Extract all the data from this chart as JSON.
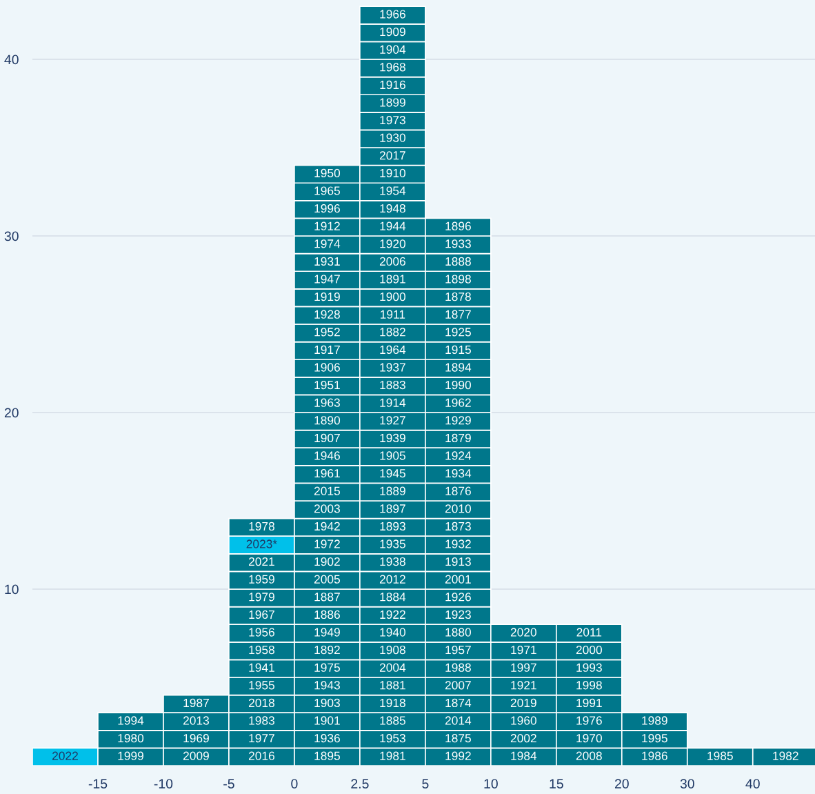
{
  "chart_data": {
    "type": "bar",
    "stacked": true,
    "color": "#00778b",
    "grid": "y",
    "categories": [
      null,
      null,
      null,
      null,
      null,
      null,
      null,
      null,
      null,
      null,
      null,
      null
    ],
    "ylim": [
      0,
      43.36
    ],
    "yticks": [
      10,
      20,
      30,
      40
    ],
    "annotations": [
      "-15",
      "-10",
      "-5",
      "0",
      "2.5",
      "5",
      "10",
      "15",
      "20",
      "30",
      "40"
    ],
    "series": [
      {
        "name": "2022",
        "color": "#00c0ea",
        "values": [
          1,
          null,
          null,
          null,
          null,
          null,
          null,
          null,
          null,
          null,
          null,
          null
        ]
      },
      {
        "name": "1999",
        "values": [
          null,
          1,
          null,
          null,
          null,
          null,
          null,
          null,
          null,
          null,
          null,
          null
        ]
      },
      {
        "name": "1980",
        "values": [
          null,
          1,
          null,
          null,
          null,
          null,
          null,
          null,
          null,
          null,
          null,
          null
        ]
      },
      {
        "name": "1994",
        "values": [
          null,
          1,
          null,
          null,
          null,
          null,
          null,
          null,
          null,
          null,
          null,
          null
        ]
      },
      {
        "name": "2009",
        "values": [
          null,
          null,
          1,
          null,
          null,
          null,
          null,
          null,
          null,
          null,
          null,
          null
        ]
      },
      {
        "name": "1969",
        "values": [
          null,
          null,
          1,
          null,
          null,
          null,
          null,
          null,
          null,
          null,
          null,
          null
        ]
      },
      {
        "name": "2013",
        "values": [
          null,
          null,
          1,
          null,
          null,
          null,
          null,
          null,
          null,
          null,
          null,
          null
        ]
      },
      {
        "name": "1987",
        "values": [
          null,
          null,
          1,
          null,
          null,
          null,
          null,
          null,
          null,
          null,
          null,
          null
        ]
      },
      {
        "name": "2016",
        "values": [
          null,
          null,
          null,
          1,
          null,
          null,
          null,
          null,
          null,
          null,
          null,
          null
        ]
      },
      {
        "name": "1977",
        "values": [
          null,
          null,
          null,
          1,
          null,
          null,
          null,
          null,
          null,
          null,
          null,
          null
        ]
      },
      {
        "name": "1983",
        "values": [
          null,
          null,
          null,
          1,
          null,
          null,
          null,
          null,
          null,
          null,
          null,
          null
        ]
      },
      {
        "name": "2018",
        "values": [
          null,
          null,
          null,
          1,
          null,
          null,
          null,
          null,
          null,
          null,
          null,
          null
        ]
      },
      {
        "name": "1955",
        "values": [
          null,
          null,
          null,
          1,
          null,
          null,
          null,
          null,
          null,
          null,
          null,
          null
        ]
      },
      {
        "name": "1941",
        "values": [
          null,
          null,
          null,
          1,
          null,
          null,
          null,
          null,
          null,
          null,
          null,
          null
        ]
      },
      {
        "name": "1958",
        "values": [
          null,
          null,
          null,
          1,
          null,
          null,
          null,
          null,
          null,
          null,
          null,
          null
        ]
      },
      {
        "name": "1956",
        "values": [
          null,
          null,
          null,
          1,
          null,
          null,
          null,
          null,
          null,
          null,
          null,
          null
        ]
      },
      {
        "name": "1967",
        "values": [
          null,
          null,
          null,
          1,
          null,
          null,
          null,
          null,
          null,
          null,
          null,
          null
        ]
      },
      {
        "name": "1979",
        "values": [
          null,
          null,
          null,
          1,
          null,
          null,
          null,
          null,
          null,
          null,
          null,
          null
        ]
      },
      {
        "name": "1959",
        "values": [
          null,
          null,
          null,
          1,
          null,
          null,
          null,
          null,
          null,
          null,
          null,
          null
        ]
      },
      {
        "name": "2021",
        "values": [
          null,
          null,
          null,
          1,
          null,
          null,
          null,
          null,
          null,
          null,
          null,
          null
        ]
      },
      {
        "name": "2023*",
        "color": "#00c0ea",
        "values": [
          null,
          null,
          null,
          1,
          null,
          null,
          null,
          null,
          null,
          null,
          null,
          null
        ]
      },
      {
        "name": "1978",
        "values": [
          null,
          null,
          null,
          1,
          null,
          null,
          null,
          null,
          null,
          null,
          null,
          null
        ]
      },
      {
        "name": "1895",
        "values": [
          null,
          null,
          null,
          null,
          1,
          null,
          null,
          null,
          null,
          null,
          null,
          null
        ]
      },
      {
        "name": "1936",
        "values": [
          null,
          null,
          null,
          null,
          1,
          null,
          null,
          null,
          null,
          null,
          null,
          null
        ]
      },
      {
        "name": "1901",
        "values": [
          null,
          null,
          null,
          null,
          1,
          null,
          null,
          null,
          null,
          null,
          null,
          null
        ]
      },
      {
        "name": "1903",
        "values": [
          null,
          null,
          null,
          null,
          1,
          null,
          null,
          null,
          null,
          null,
          null,
          null
        ]
      },
      {
        "name": "1943",
        "values": [
          null,
          null,
          null,
          null,
          1,
          null,
          null,
          null,
          null,
          null,
          null,
          null
        ]
      },
      {
        "name": "1975",
        "values": [
          null,
          null,
          null,
          null,
          1,
          null,
          null,
          null,
          null,
          null,
          null,
          null
        ]
      },
      {
        "name": "1892",
        "values": [
          null,
          null,
          null,
          null,
          1,
          null,
          null,
          null,
          null,
          null,
          null,
          null
        ]
      },
      {
        "name": "1949",
        "values": [
          null,
          null,
          null,
          null,
          1,
          null,
          null,
          null,
          null,
          null,
          null,
          null
        ]
      },
      {
        "name": "1886",
        "values": [
          null,
          null,
          null,
          null,
          1,
          null,
          null,
          null,
          null,
          null,
          null,
          null
        ]
      },
      {
        "name": "1887",
        "values": [
          null,
          null,
          null,
          null,
          1,
          null,
          null,
          null,
          null,
          null,
          null,
          null
        ]
      },
      {
        "name": "2005",
        "values": [
          null,
          null,
          null,
          null,
          1,
          null,
          null,
          null,
          null,
          null,
          null,
          null
        ]
      },
      {
        "name": "1902",
        "values": [
          null,
          null,
          null,
          null,
          1,
          null,
          null,
          null,
          null,
          null,
          null,
          null
        ]
      },
      {
        "name": "1972",
        "values": [
          null,
          null,
          null,
          null,
          1,
          null,
          null,
          null,
          null,
          null,
          null,
          null
        ]
      },
      {
        "name": "1942",
        "values": [
          null,
          null,
          null,
          null,
          1,
          null,
          null,
          null,
          null,
          null,
          null,
          null
        ]
      },
      {
        "name": "2003",
        "values": [
          null,
          null,
          null,
          null,
          1,
          null,
          null,
          null,
          null,
          null,
          null,
          null
        ]
      },
      {
        "name": "2015",
        "values": [
          null,
          null,
          null,
          null,
          1,
          null,
          null,
          null,
          null,
          null,
          null,
          null
        ]
      },
      {
        "name": "1961",
        "values": [
          null,
          null,
          null,
          null,
          1,
          null,
          null,
          null,
          null,
          null,
          null,
          null
        ]
      },
      {
        "name": "1946",
        "values": [
          null,
          null,
          null,
          null,
          1,
          null,
          null,
          null,
          null,
          null,
          null,
          null
        ]
      },
      {
        "name": "1907",
        "values": [
          null,
          null,
          null,
          null,
          1,
          null,
          null,
          null,
          null,
          null,
          null,
          null
        ]
      },
      {
        "name": "1890",
        "values": [
          null,
          null,
          null,
          null,
          1,
          null,
          null,
          null,
          null,
          null,
          null,
          null
        ]
      },
      {
        "name": "1963",
        "values": [
          null,
          null,
          null,
          null,
          1,
          null,
          null,
          null,
          null,
          null,
          null,
          null
        ]
      },
      {
        "name": "1951",
        "values": [
          null,
          null,
          null,
          null,
          1,
          null,
          null,
          null,
          null,
          null,
          null,
          null
        ]
      },
      {
        "name": "1906",
        "values": [
          null,
          null,
          null,
          null,
          1,
          null,
          null,
          null,
          null,
          null,
          null,
          null
        ]
      },
      {
        "name": "1917",
        "values": [
          null,
          null,
          null,
          null,
          1,
          null,
          null,
          null,
          null,
          null,
          null,
          null
        ]
      },
      {
        "name": "1952",
        "values": [
          null,
          null,
          null,
          null,
          1,
          null,
          null,
          null,
          null,
          null,
          null,
          null
        ]
      },
      {
        "name": "1928",
        "values": [
          null,
          null,
          null,
          null,
          1,
          null,
          null,
          null,
          null,
          null,
          null,
          null
        ]
      },
      {
        "name": "1919",
        "values": [
          null,
          null,
          null,
          null,
          1,
          null,
          null,
          null,
          null,
          null,
          null,
          null
        ]
      },
      {
        "name": "1947",
        "values": [
          null,
          null,
          null,
          null,
          1,
          null,
          null,
          null,
          null,
          null,
          null,
          null
        ]
      },
      {
        "name": "1931",
        "values": [
          null,
          null,
          null,
          null,
          1,
          null,
          null,
          null,
          null,
          null,
          null,
          null
        ]
      },
      {
        "name": "1974",
        "values": [
          null,
          null,
          null,
          null,
          1,
          null,
          null,
          null,
          null,
          null,
          null,
          null
        ]
      },
      {
        "name": "1912",
        "values": [
          null,
          null,
          null,
          null,
          1,
          null,
          null,
          null,
          null,
          null,
          null,
          null
        ]
      },
      {
        "name": "1996",
        "values": [
          null,
          null,
          null,
          null,
          1,
          null,
          null,
          null,
          null,
          null,
          null,
          null
        ]
      },
      {
        "name": "1965",
        "values": [
          null,
          null,
          null,
          null,
          1,
          null,
          null,
          null,
          null,
          null,
          null,
          null
        ]
      },
      {
        "name": "1950",
        "values": [
          null,
          null,
          null,
          null,
          1,
          null,
          null,
          null,
          null,
          null,
          null,
          null
        ]
      },
      {
        "name": "1981",
        "values": [
          null,
          null,
          null,
          null,
          null,
          1,
          null,
          null,
          null,
          null,
          null,
          null
        ]
      },
      {
        "name": "1953",
        "values": [
          null,
          null,
          null,
          null,
          null,
          1,
          null,
          null,
          null,
          null,
          null,
          null
        ]
      },
      {
        "name": "1885",
        "values": [
          null,
          null,
          null,
          null,
          null,
          1,
          null,
          null,
          null,
          null,
          null,
          null
        ]
      },
      {
        "name": "1918",
        "values": [
          null,
          null,
          null,
          null,
          null,
          1,
          null,
          null,
          null,
          null,
          null,
          null
        ]
      },
      {
        "name": "1881",
        "values": [
          null,
          null,
          null,
          null,
          null,
          1,
          null,
          null,
          null,
          null,
          null,
          null
        ]
      },
      {
        "name": "2004",
        "values": [
          null,
          null,
          null,
          null,
          null,
          1,
          null,
          null,
          null,
          null,
          null,
          null
        ]
      },
      {
        "name": "1908",
        "values": [
          null,
          null,
          null,
          null,
          null,
          1,
          null,
          null,
          null,
          null,
          null,
          null
        ]
      },
      {
        "name": "1940",
        "values": [
          null,
          null,
          null,
          null,
          null,
          1,
          null,
          null,
          null,
          null,
          null,
          null
        ]
      },
      {
        "name": "1922",
        "values": [
          null,
          null,
          null,
          null,
          null,
          1,
          null,
          null,
          null,
          null,
          null,
          null
        ]
      },
      {
        "name": "1884",
        "values": [
          null,
          null,
          null,
          null,
          null,
          1,
          null,
          null,
          null,
          null,
          null,
          null
        ]
      },
      {
        "name": "2012",
        "values": [
          null,
          null,
          null,
          null,
          null,
          1,
          null,
          null,
          null,
          null,
          null,
          null
        ]
      },
      {
        "name": "1938",
        "values": [
          null,
          null,
          null,
          null,
          null,
          1,
          null,
          null,
          null,
          null,
          null,
          null
        ]
      },
      {
        "name": "1935",
        "values": [
          null,
          null,
          null,
          null,
          null,
          1,
          null,
          null,
          null,
          null,
          null,
          null
        ]
      },
      {
        "name": "1893",
        "values": [
          null,
          null,
          null,
          null,
          null,
          1,
          null,
          null,
          null,
          null,
          null,
          null
        ]
      },
      {
        "name": "1897",
        "values": [
          null,
          null,
          null,
          null,
          null,
          1,
          null,
          null,
          null,
          null,
          null,
          null
        ]
      },
      {
        "name": "1889",
        "values": [
          null,
          null,
          null,
          null,
          null,
          1,
          null,
          null,
          null,
          null,
          null,
          null
        ]
      },
      {
        "name": "1945",
        "values": [
          null,
          null,
          null,
          null,
          null,
          1,
          null,
          null,
          null,
          null,
          null,
          null
        ]
      },
      {
        "name": "1905",
        "values": [
          null,
          null,
          null,
          null,
          null,
          1,
          null,
          null,
          null,
          null,
          null,
          null
        ]
      },
      {
        "name": "1939",
        "values": [
          null,
          null,
          null,
          null,
          null,
          1,
          null,
          null,
          null,
          null,
          null,
          null
        ]
      },
      {
        "name": "1927",
        "values": [
          null,
          null,
          null,
          null,
          null,
          1,
          null,
          null,
          null,
          null,
          null,
          null
        ]
      },
      {
        "name": "1914",
        "values": [
          null,
          null,
          null,
          null,
          null,
          1,
          null,
          null,
          null,
          null,
          null,
          null
        ]
      },
      {
        "name": "1883",
        "values": [
          null,
          null,
          null,
          null,
          null,
          1,
          null,
          null,
          null,
          null,
          null,
          null
        ]
      },
      {
        "name": "1937",
        "values": [
          null,
          null,
          null,
          null,
          null,
          1,
          null,
          null,
          null,
          null,
          null,
          null
        ]
      },
      {
        "name": "1964",
        "values": [
          null,
          null,
          null,
          null,
          null,
          1,
          null,
          null,
          null,
          null,
          null,
          null
        ]
      },
      {
        "name": "1882",
        "values": [
          null,
          null,
          null,
          null,
          null,
          1,
          null,
          null,
          null,
          null,
          null,
          null
        ]
      },
      {
        "name": "1911",
        "values": [
          null,
          null,
          null,
          null,
          null,
          1,
          null,
          null,
          null,
          null,
          null,
          null
        ]
      },
      {
        "name": "1900",
        "values": [
          null,
          null,
          null,
          null,
          null,
          1,
          null,
          null,
          null,
          null,
          null,
          null
        ]
      },
      {
        "name": "1891",
        "values": [
          null,
          null,
          null,
          null,
          null,
          1,
          null,
          null,
          null,
          null,
          null,
          null
        ]
      },
      {
        "name": "2006",
        "values": [
          null,
          null,
          null,
          null,
          null,
          1,
          null,
          null,
          null,
          null,
          null,
          null
        ]
      },
      {
        "name": "1920",
        "values": [
          null,
          null,
          null,
          null,
          null,
          1,
          null,
          null,
          null,
          null,
          null,
          null
        ]
      },
      {
        "name": "1944",
        "values": [
          null,
          null,
          null,
          null,
          null,
          1,
          null,
          null,
          null,
          null,
          null,
          null
        ]
      },
      {
        "name": "1948",
        "values": [
          null,
          null,
          null,
          null,
          null,
          1,
          null,
          null,
          null,
          null,
          null,
          null
        ]
      },
      {
        "name": "1954",
        "values": [
          null,
          null,
          null,
          null,
          null,
          1,
          null,
          null,
          null,
          null,
          null,
          null
        ]
      },
      {
        "name": "1910",
        "values": [
          null,
          null,
          null,
          null,
          null,
          1,
          null,
          null,
          null,
          null,
          null,
          null
        ]
      },
      {
        "name": "2017",
        "values": [
          null,
          null,
          null,
          null,
          null,
          1,
          null,
          null,
          null,
          null,
          null,
          null
        ]
      },
      {
        "name": "1930",
        "values": [
          null,
          null,
          null,
          null,
          null,
          1,
          null,
          null,
          null,
          null,
          null,
          null
        ]
      },
      {
        "name": "1973",
        "values": [
          null,
          null,
          null,
          null,
          null,
          1,
          null,
          null,
          null,
          null,
          null,
          null
        ]
      },
      {
        "name": "1899",
        "values": [
          null,
          null,
          null,
          null,
          null,
          1,
          null,
          null,
          null,
          null,
          null,
          null
        ]
      },
      {
        "name": "1916",
        "values": [
          null,
          null,
          null,
          null,
          null,
          1,
          null,
          null,
          null,
          null,
          null,
          null
        ]
      },
      {
        "name": "1968",
        "values": [
          null,
          null,
          null,
          null,
          null,
          1,
          null,
          null,
          null,
          null,
          null,
          null
        ]
      },
      {
        "name": "1904",
        "values": [
          null,
          null,
          null,
          null,
          null,
          1,
          null,
          null,
          null,
          null,
          null,
          null
        ]
      },
      {
        "name": "1909",
        "values": [
          null,
          null,
          null,
          null,
          null,
          1,
          null,
          null,
          null,
          null,
          null,
          null
        ]
      },
      {
        "name": "1966",
        "values": [
          null,
          null,
          null,
          null,
          null,
          1,
          null,
          null,
          null,
          null,
          null,
          null
        ]
      },
      {
        "name": "1992",
        "values": [
          null,
          null,
          null,
          null,
          null,
          null,
          1,
          null,
          null,
          null,
          null,
          null
        ]
      },
      {
        "name": "1875",
        "values": [
          null,
          null,
          null,
          null,
          null,
          null,
          1,
          null,
          null,
          null,
          null,
          null
        ]
      },
      {
        "name": "2014",
        "values": [
          null,
          null,
          null,
          null,
          null,
          null,
          1,
          null,
          null,
          null,
          null,
          null
        ]
      },
      {
        "name": "1874",
        "values": [
          null,
          null,
          null,
          null,
          null,
          null,
          1,
          null,
          null,
          null,
          null,
          null
        ]
      },
      {
        "name": "2007",
        "values": [
          null,
          null,
          null,
          null,
          null,
          null,
          1,
          null,
          null,
          null,
          null,
          null
        ]
      },
      {
        "name": "1988",
        "values": [
          null,
          null,
          null,
          null,
          null,
          null,
          1,
          null,
          null,
          null,
          null,
          null
        ]
      },
      {
        "name": "1957",
        "values": [
          null,
          null,
          null,
          null,
          null,
          null,
          1,
          null,
          null,
          null,
          null,
          null
        ]
      },
      {
        "name": "1880",
        "values": [
          null,
          null,
          null,
          null,
          null,
          null,
          1,
          null,
          null,
          null,
          null,
          null
        ]
      },
      {
        "name": "1923",
        "values": [
          null,
          null,
          null,
          null,
          null,
          null,
          1,
          null,
          null,
          null,
          null,
          null
        ]
      },
      {
        "name": "1926",
        "values": [
          null,
          null,
          null,
          null,
          null,
          null,
          1,
          null,
          null,
          null,
          null,
          null
        ]
      },
      {
        "name": "2001",
        "values": [
          null,
          null,
          null,
          null,
          null,
          null,
          1,
          null,
          null,
          null,
          null,
          null
        ]
      },
      {
        "name": "1913",
        "values": [
          null,
          null,
          null,
          null,
          null,
          null,
          1,
          null,
          null,
          null,
          null,
          null
        ]
      },
      {
        "name": "1932",
        "values": [
          null,
          null,
          null,
          null,
          null,
          null,
          1,
          null,
          null,
          null,
          null,
          null
        ]
      },
      {
        "name": "1873",
        "values": [
          null,
          null,
          null,
          null,
          null,
          null,
          1,
          null,
          null,
          null,
          null,
          null
        ]
      },
      {
        "name": "2010",
        "values": [
          null,
          null,
          null,
          null,
          null,
          null,
          1,
          null,
          null,
          null,
          null,
          null
        ]
      },
      {
        "name": "1876",
        "values": [
          null,
          null,
          null,
          null,
          null,
          null,
          1,
          null,
          null,
          null,
          null,
          null
        ]
      },
      {
        "name": "1934",
        "values": [
          null,
          null,
          null,
          null,
          null,
          null,
          1,
          null,
          null,
          null,
          null,
          null
        ]
      },
      {
        "name": "1924",
        "values": [
          null,
          null,
          null,
          null,
          null,
          null,
          1,
          null,
          null,
          null,
          null,
          null
        ]
      },
      {
        "name": "1879",
        "values": [
          null,
          null,
          null,
          null,
          null,
          null,
          1,
          null,
          null,
          null,
          null,
          null
        ]
      },
      {
        "name": "1929",
        "values": [
          null,
          null,
          null,
          null,
          null,
          null,
          1,
          null,
          null,
          null,
          null,
          null
        ]
      },
      {
        "name": "1962",
        "values": [
          null,
          null,
          null,
          null,
          null,
          null,
          1,
          null,
          null,
          null,
          null,
          null
        ]
      },
      {
        "name": "1990",
        "values": [
          null,
          null,
          null,
          null,
          null,
          null,
          1,
          null,
          null,
          null,
          null,
          null
        ]
      },
      {
        "name": "1894",
        "values": [
          null,
          null,
          null,
          null,
          null,
          null,
          1,
          null,
          null,
          null,
          null,
          null
        ]
      },
      {
        "name": "1915",
        "values": [
          null,
          null,
          null,
          null,
          null,
          null,
          1,
          null,
          null,
          null,
          null,
          null
        ]
      },
      {
        "name": "1925",
        "values": [
          null,
          null,
          null,
          null,
          null,
          null,
          1,
          null,
          null,
          null,
          null,
          null
        ]
      },
      {
        "name": "1877",
        "values": [
          null,
          null,
          null,
          null,
          null,
          null,
          1,
          null,
          null,
          null,
          null,
          null
        ]
      },
      {
        "name": "1878",
        "values": [
          null,
          null,
          null,
          null,
          null,
          null,
          1,
          null,
          null,
          null,
          null,
          null
        ]
      },
      {
        "name": "1898",
        "values": [
          null,
          null,
          null,
          null,
          null,
          null,
          1,
          null,
          null,
          null,
          null,
          null
        ]
      },
      {
        "name": "1888",
        "values": [
          null,
          null,
          null,
          null,
          null,
          null,
          1,
          null,
          null,
          null,
          null,
          null
        ]
      },
      {
        "name": "1933",
        "values": [
          null,
          null,
          null,
          null,
          null,
          null,
          1,
          null,
          null,
          null,
          null,
          null
        ]
      },
      {
        "name": "1896",
        "values": [
          null,
          null,
          null,
          null,
          null,
          null,
          1,
          null,
          null,
          null,
          null,
          null
        ]
      },
      {
        "name": "1984",
        "values": [
          null,
          null,
          null,
          null,
          null,
          null,
          null,
          1,
          null,
          null,
          null,
          null
        ]
      },
      {
        "name": "2002",
        "values": [
          null,
          null,
          null,
          null,
          null,
          null,
          null,
          1,
          null,
          null,
          null,
          null
        ]
      },
      {
        "name": "1960",
        "values": [
          null,
          null,
          null,
          null,
          null,
          null,
          null,
          1,
          null,
          null,
          null,
          null
        ]
      },
      {
        "name": "2019",
        "values": [
          null,
          null,
          null,
          null,
          null,
          null,
          null,
          1,
          null,
          null,
          null,
          null
        ]
      },
      {
        "name": "1921",
        "values": [
          null,
          null,
          null,
          null,
          null,
          null,
          null,
          1,
          null,
          null,
          null,
          null
        ]
      },
      {
        "name": "1997",
        "values": [
          null,
          null,
          null,
          null,
          null,
          null,
          null,
          1,
          null,
          null,
          null,
          null
        ]
      },
      {
        "name": "1971",
        "values": [
          null,
          null,
          null,
          null,
          null,
          null,
          null,
          1,
          null,
          null,
          null,
          null
        ]
      },
      {
        "name": "2020",
        "values": [
          null,
          null,
          null,
          null,
          null,
          null,
          null,
          1,
          null,
          null,
          null,
          null
        ]
      },
      {
        "name": "2008",
        "values": [
          null,
          null,
          null,
          null,
          null,
          null,
          null,
          null,
          1,
          null,
          null,
          null
        ]
      },
      {
        "name": "1970",
        "values": [
          null,
          null,
          null,
          null,
          null,
          null,
          null,
          null,
          1,
          null,
          null,
          null
        ]
      },
      {
        "name": "1976",
        "values": [
          null,
          null,
          null,
          null,
          null,
          null,
          null,
          null,
          1,
          null,
          null,
          null
        ]
      },
      {
        "name": "1991",
        "values": [
          null,
          null,
          null,
          null,
          null,
          null,
          null,
          null,
          1,
          null,
          null,
          null
        ]
      },
      {
        "name": "1998",
        "values": [
          null,
          null,
          null,
          null,
          null,
          null,
          null,
          null,
          1,
          null,
          null,
          null
        ]
      },
      {
        "name": "1993",
        "values": [
          null,
          null,
          null,
          null,
          null,
          null,
          null,
          null,
          1,
          null,
          null,
          null
        ]
      },
      {
        "name": "2000",
        "values": [
          null,
          null,
          null,
          null,
          null,
          null,
          null,
          null,
          1,
          null,
          null,
          null
        ]
      },
      {
        "name": "2011",
        "values": [
          null,
          null,
          null,
          null,
          null,
          null,
          null,
          null,
          1,
          null,
          null,
          null
        ]
      },
      {
        "name": "1986",
        "values": [
          null,
          null,
          null,
          null,
          null,
          null,
          null,
          null,
          null,
          1,
          null,
          null
        ]
      },
      {
        "name": "1995",
        "values": [
          null,
          null,
          null,
          null,
          null,
          null,
          null,
          null,
          null,
          1,
          null,
          null
        ]
      },
      {
        "name": "1989",
        "values": [
          null,
          null,
          null,
          null,
          null,
          null,
          null,
          null,
          null,
          1,
          null,
          null
        ]
      },
      {
        "name": "1985",
        "values": [
          null,
          null,
          null,
          null,
          null,
          null,
          null,
          null,
          null,
          null,
          1,
          null
        ]
      },
      {
        "name": "1982",
        "values": [
          null,
          null,
          null,
          null,
          null,
          null,
          null,
          null,
          null,
          null,
          null,
          1
        ]
      }
    ]
  }
}
